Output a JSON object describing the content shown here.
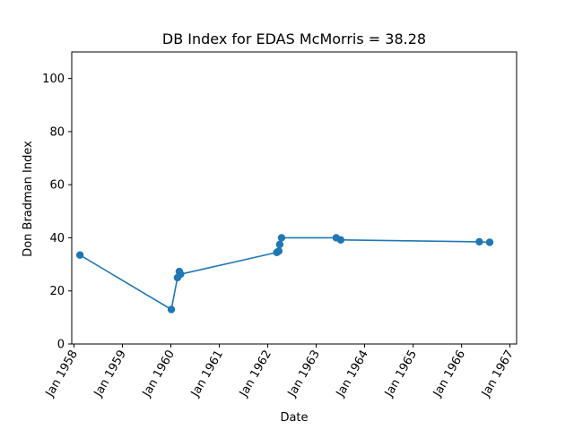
{
  "chart_data": {
    "type": "line",
    "title": "DB Index for EDAS McMorris = 38.28",
    "xlabel": "Date",
    "ylabel": "Don Bradman Index",
    "ylim": [
      0,
      110
    ],
    "xlim": [
      "1957-12-15",
      "1967-02-20"
    ],
    "yticks": [
      0,
      20,
      40,
      60,
      80,
      100
    ],
    "xticks": [
      {
        "date": "1958-01-01",
        "label": "Jan 1958"
      },
      {
        "date": "1959-01-01",
        "label": "Jan 1959"
      },
      {
        "date": "1960-01-01",
        "label": "Jan 1960"
      },
      {
        "date": "1961-01-01",
        "label": "Jan 1961"
      },
      {
        "date": "1962-01-01",
        "label": "Jan 1962"
      },
      {
        "date": "1963-01-01",
        "label": "Jan 1963"
      },
      {
        "date": "1964-01-01",
        "label": "Jan 1964"
      },
      {
        "date": "1965-01-01",
        "label": "Jan 1965"
      },
      {
        "date": "1966-01-01",
        "label": "Jan 1966"
      },
      {
        "date": "1967-01-01",
        "label": "Jan 1967"
      }
    ],
    "grid": false,
    "color": "#1f77b4",
    "series": [
      {
        "points": [
          {
            "x": "1958-02-15",
            "y": 33.5
          },
          {
            "x": "1960-01-05",
            "y": 13.0
          },
          {
            "x": "1960-02-20",
            "y": 25.0
          },
          {
            "x": "1960-03-05",
            "y": 27.3
          },
          {
            "x": "1960-03-15",
            "y": 26.3
          },
          {
            "x": "1962-03-10",
            "y": 34.5
          },
          {
            "x": "1962-03-25",
            "y": 35.0
          },
          {
            "x": "1962-04-01",
            "y": 37.5
          },
          {
            "x": "1962-04-15",
            "y": 40.0
          },
          {
            "x": "1963-06-01",
            "y": 40.0
          },
          {
            "x": "1963-07-05",
            "y": 39.2
          },
          {
            "x": "1966-05-15",
            "y": 38.5
          },
          {
            "x": "1966-08-01",
            "y": 38.3
          }
        ]
      }
    ]
  }
}
